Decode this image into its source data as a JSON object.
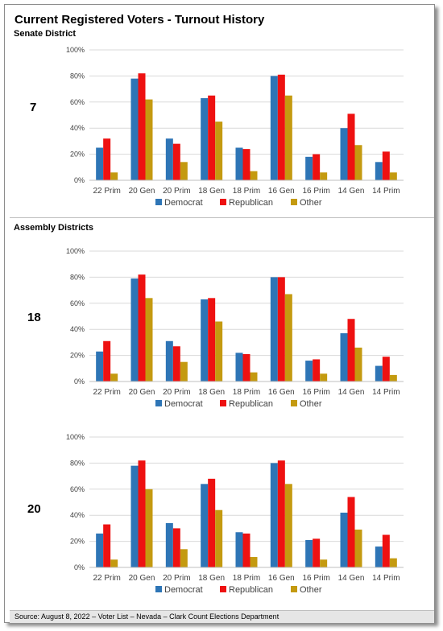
{
  "title": "Current Registered Voters - Turnout History",
  "senate_label": "Senate District",
  "assembly_label": "Assembly Districts",
  "footer": "Source: August 8, 2022 – Voter List – Nevada – Clark Count Elections Department",
  "colors": {
    "Democrat": "#2e75b6",
    "Republican": "#ee1111",
    "Other": "#c49a10"
  },
  "chart_data": [
    {
      "type": "bar",
      "district": "7",
      "categories": [
        "22 Prim",
        "20 Gen",
        "20 Prim",
        "18 Gen",
        "18 Prim",
        "16 Gen",
        "16 Prim",
        "14 Gen",
        "14 Prim"
      ],
      "series": [
        {
          "name": "Democrat",
          "values": [
            25,
            78,
            32,
            63,
            25,
            80,
            18,
            40,
            14
          ]
        },
        {
          "name": "Republican",
          "values": [
            32,
            82,
            28,
            65,
            24,
            81,
            20,
            51,
            22
          ]
        },
        {
          "name": "Other",
          "values": [
            6,
            62,
            14,
            45,
            7,
            65,
            6,
            27,
            6
          ]
        }
      ],
      "ylim": [
        0,
        100
      ],
      "yticks": [
        "0%",
        "20%",
        "40%",
        "60%",
        "80%",
        "100%"
      ],
      "legend": "bottom"
    },
    {
      "type": "bar",
      "district": "18",
      "categories": [
        "22 Prim",
        "20 Gen",
        "20 Prim",
        "18 Gen",
        "18 Prim",
        "16 Gen",
        "16 Prim",
        "14 Gen",
        "14 Prim"
      ],
      "series": [
        {
          "name": "Democrat",
          "values": [
            23,
            79,
            31,
            63,
            22,
            80,
            16,
            37,
            12
          ]
        },
        {
          "name": "Republican",
          "values": [
            31,
            82,
            27,
            64,
            21,
            80,
            17,
            48,
            19
          ]
        },
        {
          "name": "Other",
          "values": [
            6,
            64,
            15,
            46,
            7,
            67,
            6,
            26,
            5
          ]
        }
      ],
      "ylim": [
        0,
        100
      ],
      "yticks": [
        "0%",
        "20%",
        "40%",
        "60%",
        "80%",
        "100%"
      ],
      "legend": "bottom"
    },
    {
      "type": "bar",
      "district": "20",
      "categories": [
        "22 Prim",
        "20 Gen",
        "20 Prim",
        "18 Gen",
        "18 Prim",
        "16 Gen",
        "16 Prim",
        "14 Gen",
        "14 Prim"
      ],
      "series": [
        {
          "name": "Democrat",
          "values": [
            26,
            78,
            34,
            64,
            27,
            80,
            21,
            42,
            16
          ]
        },
        {
          "name": "Republican",
          "values": [
            33,
            82,
            30,
            68,
            26,
            82,
            22,
            54,
            25
          ]
        },
        {
          "name": "Other",
          "values": [
            6,
            60,
            14,
            44,
            8,
            64,
            6,
            29,
            7
          ]
        }
      ],
      "ylim": [
        0,
        100
      ],
      "yticks": [
        "0%",
        "20%",
        "40%",
        "60%",
        "80%",
        "100%"
      ],
      "legend": "bottom"
    }
  ]
}
